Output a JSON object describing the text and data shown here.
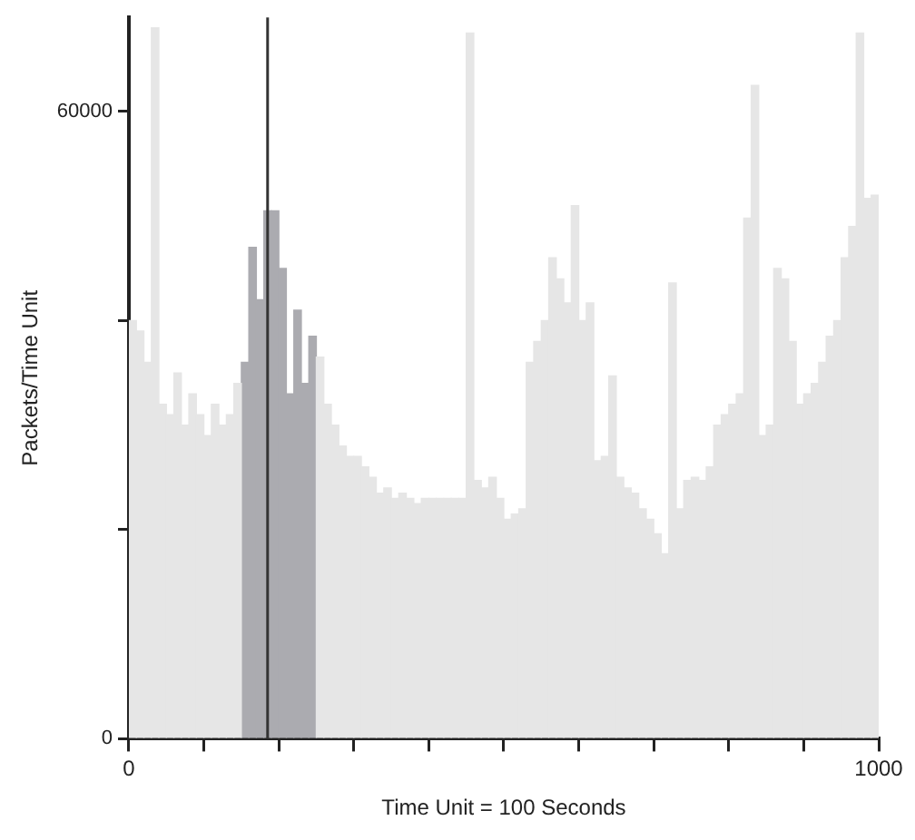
{
  "chart_data": {
    "type": "histogram",
    "xlabel": "Time Unit = 100 Seconds",
    "ylabel": "Packets/Time Unit",
    "bins": [
      0,
      10,
      20,
      30,
      40,
      50,
      60,
      70,
      80,
      90,
      100,
      110,
      120,
      130,
      140,
      150,
      160,
      170,
      180,
      190,
      200,
      210,
      220,
      230,
      240,
      250,
      260,
      270,
      280,
      290,
      300,
      310,
      320,
      330,
      340,
      350,
      360,
      370,
      380,
      390,
      400,
      410,
      420,
      430,
      440,
      450,
      460,
      470,
      480,
      490,
      500,
      510,
      520,
      530,
      540,
      550,
      560,
      570,
      580,
      590,
      600,
      610,
      620,
      630,
      640,
      650,
      660,
      670,
      680,
      690,
      700,
      710,
      720,
      730,
      740,
      750,
      760,
      770,
      780,
      790,
      800,
      810,
      820,
      830,
      840,
      850,
      860,
      870,
      880,
      890,
      900,
      910,
      920,
      930,
      940,
      950,
      960,
      970,
      980,
      990,
      1000
    ],
    "series": [
      {
        "color": "#e6e6e6",
        "values": [
          40000,
          39000,
          36000,
          68000,
          32000,
          31000,
          35000,
          30000,
          33000,
          31000,
          29000,
          32000,
          30000,
          31000,
          34000,
          null,
          null,
          null,
          null,
          null,
          null,
          null,
          null,
          null,
          null,
          36500,
          32000,
          30000,
          28000,
          27000,
          27000,
          26000,
          25000,
          23500,
          24000,
          23000,
          23500,
          23000,
          22500,
          23000,
          23000,
          23000,
          23000,
          23000,
          23000,
          67500,
          24700,
          24000,
          25000,
          23000,
          21000,
          21500,
          22000,
          36000,
          38000,
          40000,
          46000,
          44000,
          41700,
          51000,
          40000,
          41700,
          26600,
          27000,
          34700,
          25000,
          24000,
          23500,
          22000,
          21000,
          19600,
          17700,
          43600,
          22000,
          24700,
          25000,
          24700,
          26000,
          30000,
          31000,
          32000,
          33000,
          49800,
          62500,
          29000,
          30000,
          45000,
          44000,
          38000,
          32000,
          33000,
          34000,
          36000,
          38500,
          40000,
          46000,
          49000,
          67500,
          51700,
          52000
        ]
      },
      {
        "color": "#ababb0",
        "values": [
          null,
          null,
          null,
          null,
          null,
          null,
          null,
          null,
          null,
          null,
          null,
          null,
          null,
          null,
          null,
          36000,
          47000,
          42000,
          50500,
          50500,
          45000,
          33000,
          41000,
          34000,
          38500,
          null,
          null,
          null,
          null,
          null,
          null,
          null,
          null,
          null,
          null,
          null,
          null,
          null,
          null,
          null,
          null,
          null,
          null,
          null,
          null,
          null,
          null,
          null,
          null,
          null,
          null,
          null,
          null,
          null,
          null,
          null,
          null,
          null,
          null,
          null,
          null,
          null,
          null,
          null,
          null,
          null,
          null,
          null,
          null,
          null,
          null,
          null,
          null,
          null,
          null,
          null,
          null,
          null,
          null,
          null,
          null,
          null,
          null,
          null,
          null,
          null,
          null,
          null,
          null,
          null,
          null,
          null,
          null,
          null,
          null,
          null,
          null,
          null,
          null,
          null
        ]
      }
    ],
    "xlim": [
      0,
      1000
    ],
    "xticks": [
      0,
      {
        "value": 100,
        "label": null
      },
      {
        "value": 200,
        "label": null
      },
      {
        "value": 300,
        "label": null
      },
      {
        "value": 400,
        "label": null
      },
      {
        "value": 500,
        "label": null
      },
      {
        "value": 600,
        "label": null
      },
      {
        "value": 700,
        "label": null
      },
      {
        "value": 800,
        "label": null
      },
      {
        "value": 900,
        "label": null
      },
      1000
    ],
    "ylim": [
      0,
      69000
    ],
    "yticks": [
      0,
      {
        "value": 20000,
        "label": null
      },
      {
        "value": 40000,
        "label": null
      },
      60000
    ],
    "grid": false,
    "ref_lines": [
      {
        "axis": "x",
        "value": 185,
        "color": "#333333"
      }
    ]
  }
}
